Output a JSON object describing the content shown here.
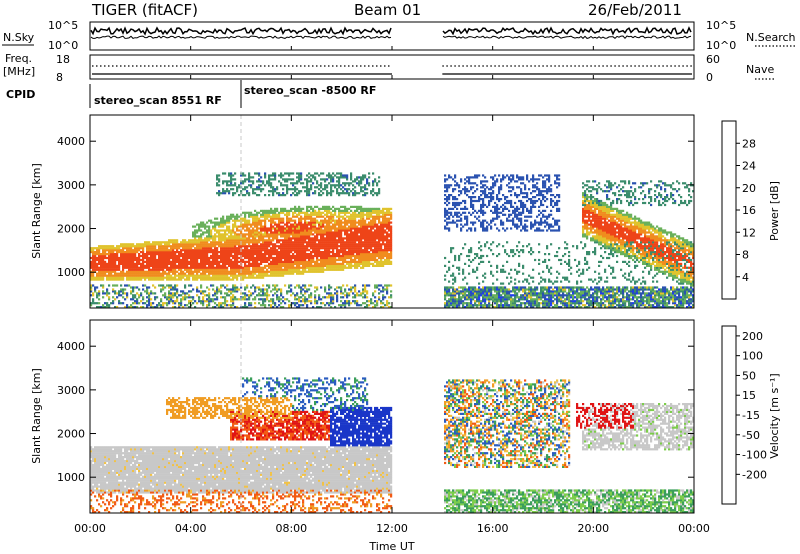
{
  "header": {
    "title": "TIGER (fitACF)",
    "beam": "Beam 01",
    "date": "26/Feb/2011"
  },
  "top_panels": {
    "nsky_label": "N.Sky",
    "nsky_ticks": [
      "10^5",
      "10^0"
    ],
    "nsearch_label": "N.Search",
    "freq_label": "Freq.",
    "freq_unit": "[MHz]",
    "freq_ticks": [
      "18",
      "8"
    ],
    "nave_label": "Nave",
    "nave_ticks": [
      "60",
      "0"
    ],
    "cpid_label": "CPID",
    "cpid_segments": [
      "stereo_scan 8551 RF",
      "stereo_scan -8500 RF"
    ]
  },
  "colors": {
    "power": [
      "#1f3cf0",
      "#2a52b0",
      "#3a8c6c",
      "#69b05a",
      "#e0c32d",
      "#f08c1e",
      "#ee4418",
      "#e01010"
    ],
    "velocity": [
      "#e01414",
      "#f25a14",
      "#f09c23",
      "#f2c245",
      "#c8c8c8",
      "#7ccd4a",
      "#3a9e5a",
      "#2a5cc0",
      "#1a36c8"
    ]
  },
  "chart_data": [
    {
      "type": "heatmap",
      "name": "power",
      "ylabel": "Slant Range [km]",
      "xlim_hours": [
        0,
        24
      ],
      "ylim": [
        180,
        4600
      ],
      "yticks": [
        1000,
        2000,
        3000,
        4000
      ],
      "xticks": [
        "00:00",
        "04:00",
        "08:00",
        "12:00",
        "16:00",
        "20:00",
        "00:00"
      ],
      "colorbar": {
        "label": "Power [dB]",
        "ticks": [
          "4",
          "8",
          "12",
          "16",
          "20",
          "24",
          "28"
        ]
      },
      "data_gap_hours": [
        12,
        14
      ]
    },
    {
      "type": "heatmap",
      "name": "velocity",
      "ylabel": "Slant Range [km]",
      "xlabel": "Time UT",
      "xlim_hours": [
        0,
        24
      ],
      "ylim": [
        180,
        4600
      ],
      "yticks": [
        1000,
        2000,
        3000,
        4000
      ],
      "xticks": [
        "00:00",
        "04:00",
        "08:00",
        "12:00",
        "16:00",
        "20:00",
        "00:00"
      ],
      "colorbar": {
        "label": "Velocity [m s⁻¹]",
        "ticks": [
          "200",
          "100",
          "50",
          "15",
          "-15",
          "-50",
          "-100",
          "-200"
        ]
      },
      "data_gap_hours": [
        12,
        14
      ]
    }
  ]
}
